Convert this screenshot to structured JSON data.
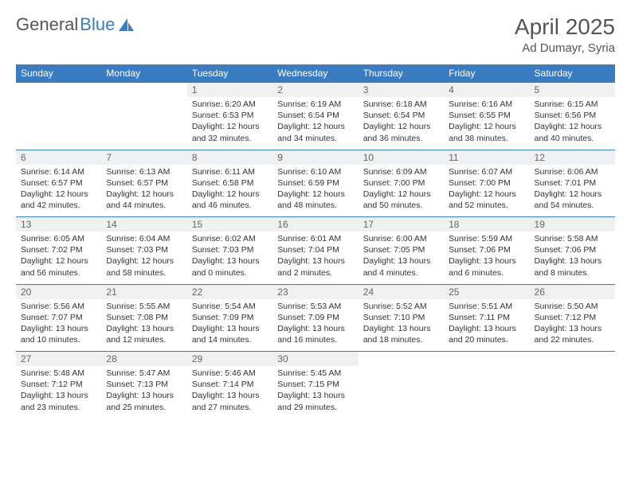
{
  "brand": {
    "part1": "General",
    "part2": "Blue"
  },
  "title": "April 2025",
  "location": "Ad Dumayr, Syria",
  "colors": {
    "accent": "#3b7bbf",
    "headerBg": "#eef0f2",
    "text": "#333"
  },
  "weekdays": [
    "Sunday",
    "Monday",
    "Tuesday",
    "Wednesday",
    "Thursday",
    "Friday",
    "Saturday"
  ],
  "weeks": [
    [
      null,
      null,
      {
        "n": "1",
        "r": "6:20 AM",
        "s": "6:53 PM",
        "d": "12 hours and 32 minutes."
      },
      {
        "n": "2",
        "r": "6:19 AM",
        "s": "6:54 PM",
        "d": "12 hours and 34 minutes."
      },
      {
        "n": "3",
        "r": "6:18 AM",
        "s": "6:54 PM",
        "d": "12 hours and 36 minutes."
      },
      {
        "n": "4",
        "r": "6:16 AM",
        "s": "6:55 PM",
        "d": "12 hours and 38 minutes."
      },
      {
        "n": "5",
        "r": "6:15 AM",
        "s": "6:56 PM",
        "d": "12 hours and 40 minutes."
      }
    ],
    [
      {
        "n": "6",
        "r": "6:14 AM",
        "s": "6:57 PM",
        "d": "12 hours and 42 minutes."
      },
      {
        "n": "7",
        "r": "6:13 AM",
        "s": "6:57 PM",
        "d": "12 hours and 44 minutes."
      },
      {
        "n": "8",
        "r": "6:11 AM",
        "s": "6:58 PM",
        "d": "12 hours and 46 minutes."
      },
      {
        "n": "9",
        "r": "6:10 AM",
        "s": "6:59 PM",
        "d": "12 hours and 48 minutes."
      },
      {
        "n": "10",
        "r": "6:09 AM",
        "s": "7:00 PM",
        "d": "12 hours and 50 minutes."
      },
      {
        "n": "11",
        "r": "6:07 AM",
        "s": "7:00 PM",
        "d": "12 hours and 52 minutes."
      },
      {
        "n": "12",
        "r": "6:06 AM",
        "s": "7:01 PM",
        "d": "12 hours and 54 minutes."
      }
    ],
    [
      {
        "n": "13",
        "r": "6:05 AM",
        "s": "7:02 PM",
        "d": "12 hours and 56 minutes."
      },
      {
        "n": "14",
        "r": "6:04 AM",
        "s": "7:03 PM",
        "d": "12 hours and 58 minutes."
      },
      {
        "n": "15",
        "r": "6:02 AM",
        "s": "7:03 PM",
        "d": "13 hours and 0 minutes."
      },
      {
        "n": "16",
        "r": "6:01 AM",
        "s": "7:04 PM",
        "d": "13 hours and 2 minutes."
      },
      {
        "n": "17",
        "r": "6:00 AM",
        "s": "7:05 PM",
        "d": "13 hours and 4 minutes."
      },
      {
        "n": "18",
        "r": "5:59 AM",
        "s": "7:06 PM",
        "d": "13 hours and 6 minutes."
      },
      {
        "n": "19",
        "r": "5:58 AM",
        "s": "7:06 PM",
        "d": "13 hours and 8 minutes."
      }
    ],
    [
      {
        "n": "20",
        "r": "5:56 AM",
        "s": "7:07 PM",
        "d": "13 hours and 10 minutes."
      },
      {
        "n": "21",
        "r": "5:55 AM",
        "s": "7:08 PM",
        "d": "13 hours and 12 minutes."
      },
      {
        "n": "22",
        "r": "5:54 AM",
        "s": "7:09 PM",
        "d": "13 hours and 14 minutes."
      },
      {
        "n": "23",
        "r": "5:53 AM",
        "s": "7:09 PM",
        "d": "13 hours and 16 minutes."
      },
      {
        "n": "24",
        "r": "5:52 AM",
        "s": "7:10 PM",
        "d": "13 hours and 18 minutes."
      },
      {
        "n": "25",
        "r": "5:51 AM",
        "s": "7:11 PM",
        "d": "13 hours and 20 minutes."
      },
      {
        "n": "26",
        "r": "5:50 AM",
        "s": "7:12 PM",
        "d": "13 hours and 22 minutes."
      }
    ],
    [
      {
        "n": "27",
        "r": "5:48 AM",
        "s": "7:12 PM",
        "d": "13 hours and 23 minutes."
      },
      {
        "n": "28",
        "r": "5:47 AM",
        "s": "7:13 PM",
        "d": "13 hours and 25 minutes."
      },
      {
        "n": "29",
        "r": "5:46 AM",
        "s": "7:14 PM",
        "d": "13 hours and 27 minutes."
      },
      {
        "n": "30",
        "r": "5:45 AM",
        "s": "7:15 PM",
        "d": "13 hours and 29 minutes."
      },
      null,
      null,
      null
    ]
  ],
  "labels": {
    "sunrise": "Sunrise:",
    "sunset": "Sunset:",
    "daylight": "Daylight:"
  }
}
